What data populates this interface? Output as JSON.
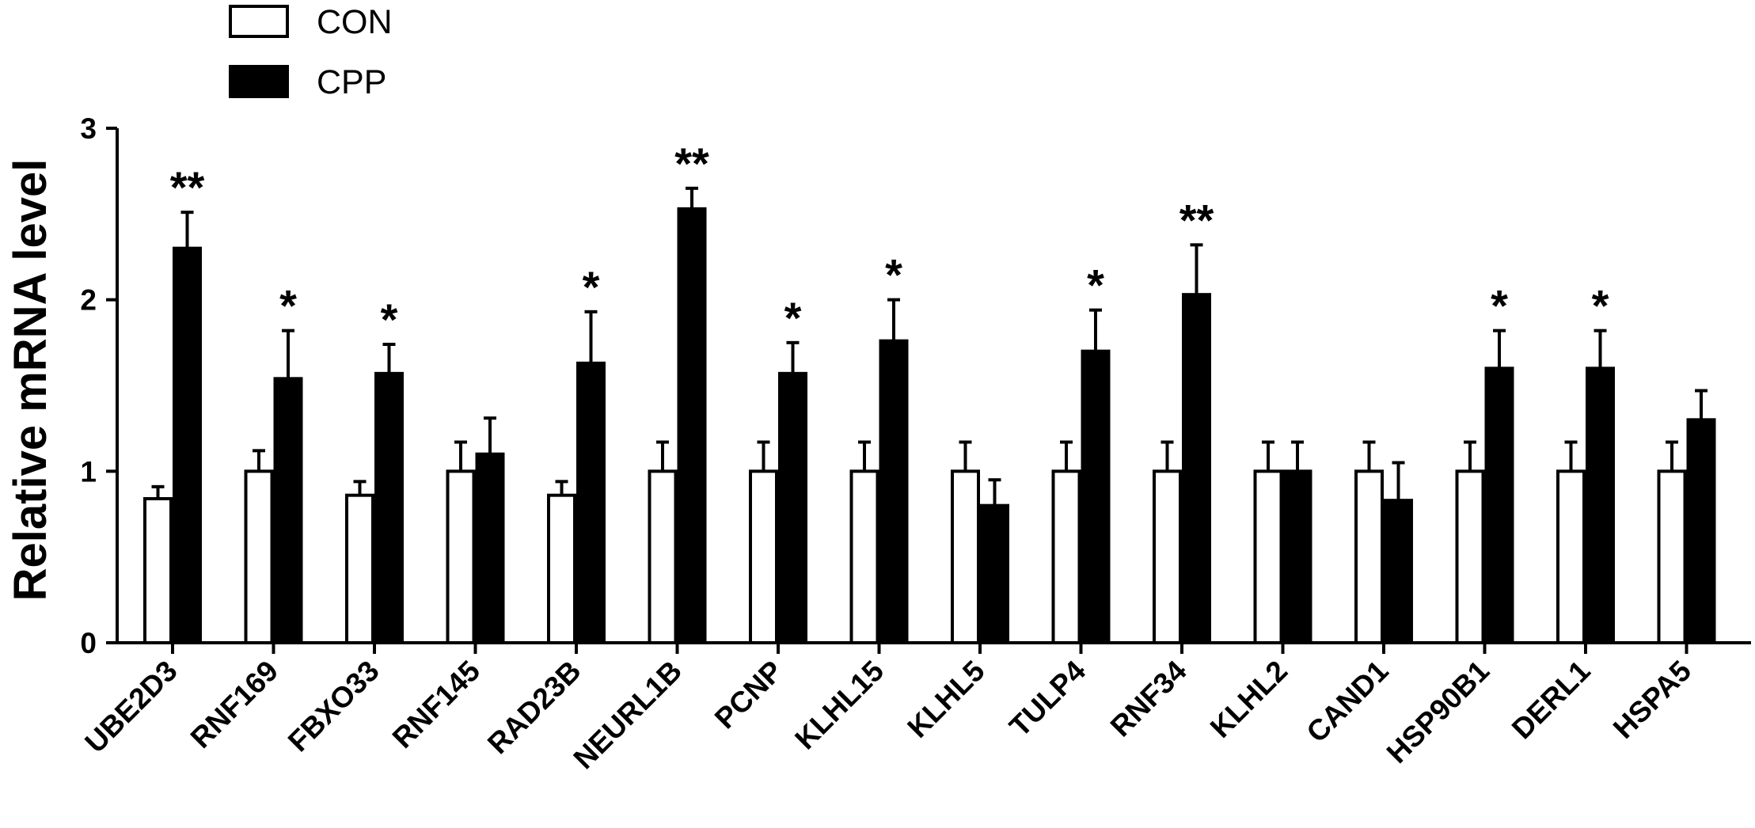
{
  "chart_data": {
    "type": "bar",
    "title": "",
    "xlabel": "",
    "ylabel": "Relative mRNA level",
    "ylim": [
      0,
      3
    ],
    "yticks": [
      0,
      1,
      2,
      3
    ],
    "grid": false,
    "legend_position": "top-left",
    "categories": [
      "UBE2D3",
      "RNF169",
      "FBXO33",
      "RNF145",
      "RAD23B",
      "NEURL1B",
      "PCNP",
      "KLHL15",
      "KLHL5",
      "TULP4",
      "RNF34",
      "KLHL2",
      "CAND1",
      "HSP90B1",
      "DERL1",
      "HSPA5"
    ],
    "series": [
      {
        "name": "CON",
        "fill": "#ffffff",
        "values": [
          0.84,
          1.0,
          0.86,
          1.0,
          0.86,
          1.0,
          1.0,
          1.0,
          1.0,
          1.0,
          1.0,
          1.0,
          1.0,
          1.0,
          1.0,
          1.0
        ],
        "errors": [
          0.07,
          0.12,
          0.08,
          0.17,
          0.08,
          0.17,
          0.17,
          0.17,
          0.17,
          0.17,
          0.17,
          0.17,
          0.17,
          0.17,
          0.17,
          0.17
        ]
      },
      {
        "name": "CPP",
        "fill": "#000000",
        "values": [
          2.3,
          1.54,
          1.57,
          1.1,
          1.63,
          2.53,
          1.57,
          1.76,
          0.8,
          1.7,
          2.03,
          1.0,
          0.83,
          1.6,
          1.6,
          1.3
        ],
        "errors": [
          0.21,
          0.28,
          0.17,
          0.21,
          0.3,
          0.12,
          0.18,
          0.24,
          0.15,
          0.24,
          0.29,
          0.17,
          0.22,
          0.22,
          0.22,
          0.17
        ]
      }
    ],
    "significance": [
      "**",
      "*",
      "*",
      "",
      "*",
      "**",
      "*",
      "*",
      "",
      "*",
      "**",
      "",
      "",
      "*",
      "*",
      ""
    ]
  }
}
